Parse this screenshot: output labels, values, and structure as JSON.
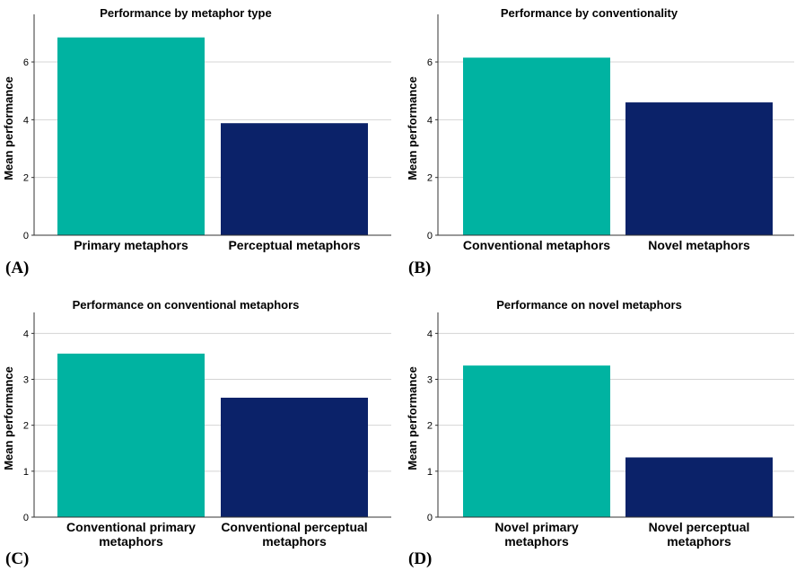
{
  "colors": {
    "primary_bar": "#00B3A1",
    "secondary_bar": "#0B2269",
    "grid": "#D4D4D4",
    "axis": "#333333"
  },
  "panel_labels": [
    "(A)",
    "(B)",
    "(C)",
    "(D)"
  ],
  "chart_data": [
    {
      "type": "bar",
      "title": "Performance by metaphor type",
      "ylabel": "Mean performance",
      "xlabel": "",
      "categories": [
        [
          "Primary metaphors"
        ],
        [
          "Perceptual metaphors"
        ]
      ],
      "values": [
        6.85,
        3.88
      ],
      "ylim": [
        0,
        7.4
      ],
      "yticks": [
        "0",
        "2",
        "4",
        "6"
      ],
      "grid": true
    },
    {
      "type": "bar",
      "title": "Performance by conventionality",
      "ylabel": "Mean performance",
      "xlabel": "",
      "categories": [
        [
          "Conventional metaphors"
        ],
        [
          "Novel metaphors"
        ]
      ],
      "values": [
        6.15,
        4.6
      ],
      "ylim": [
        0,
        7.4
      ],
      "yticks": [
        "0",
        "2",
        "4",
        "6"
      ],
      "grid": true
    },
    {
      "type": "bar",
      "title": "Performance on conventional metaphors",
      "ylabel": "Mean performance",
      "xlabel": "",
      "categories": [
        [
          "Conventional primary",
          "metaphors"
        ],
        [
          "Conventional perceptual",
          "metaphors"
        ]
      ],
      "values": [
        3.56,
        2.6
      ],
      "ylim": [
        0,
        4.3
      ],
      "yticks": [
        "0",
        "1",
        "2",
        "3",
        "4"
      ],
      "grid": true
    },
    {
      "type": "bar",
      "title": "Performance on novel metaphors",
      "ylabel": "Mean performance",
      "xlabel": "",
      "categories": [
        [
          "Novel primary",
          "metaphors"
        ],
        [
          "Novel perceptual",
          "metaphors"
        ]
      ],
      "values": [
        3.3,
        1.3
      ],
      "ylim": [
        0,
        4.3
      ],
      "yticks": [
        "0",
        "1",
        "2",
        "3",
        "4"
      ],
      "grid": true
    }
  ]
}
